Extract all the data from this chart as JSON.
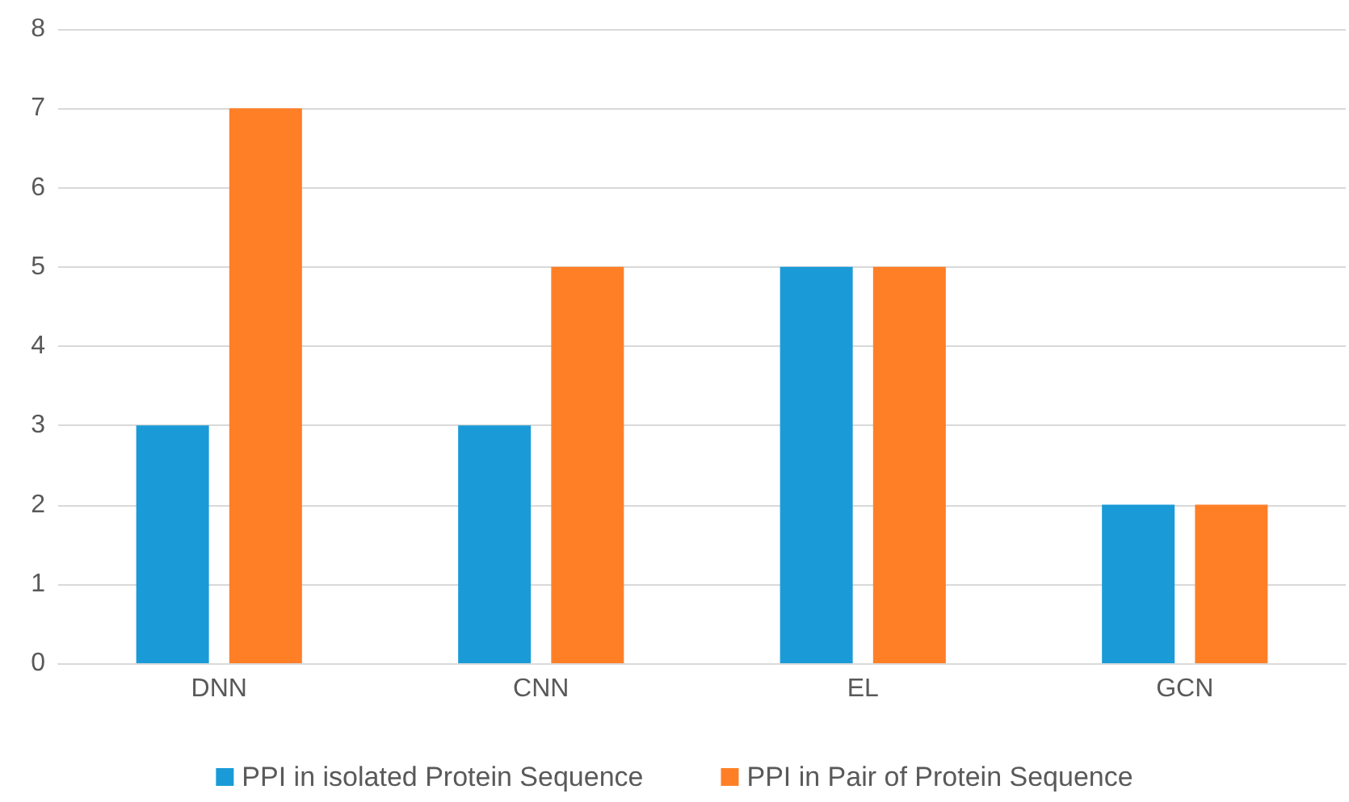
{
  "chart_data": {
    "type": "bar",
    "categories": [
      "DNN",
      "CNN",
      "EL",
      "GCN"
    ],
    "series": [
      {
        "name": "PPI in isolated Protein Sequence",
        "color": "#1a9bd7",
        "values": [
          3,
          3,
          5,
          2
        ]
      },
      {
        "name": "PPI in Pair of Protein Sequence",
        "color": "#ff7f27",
        "values": [
          7,
          5,
          5,
          2
        ]
      }
    ],
    "ylim": [
      0,
      8
    ],
    "yticks": [
      0,
      1,
      2,
      3,
      4,
      5,
      6,
      7,
      8
    ],
    "grid": "y",
    "legend": "bottom"
  }
}
